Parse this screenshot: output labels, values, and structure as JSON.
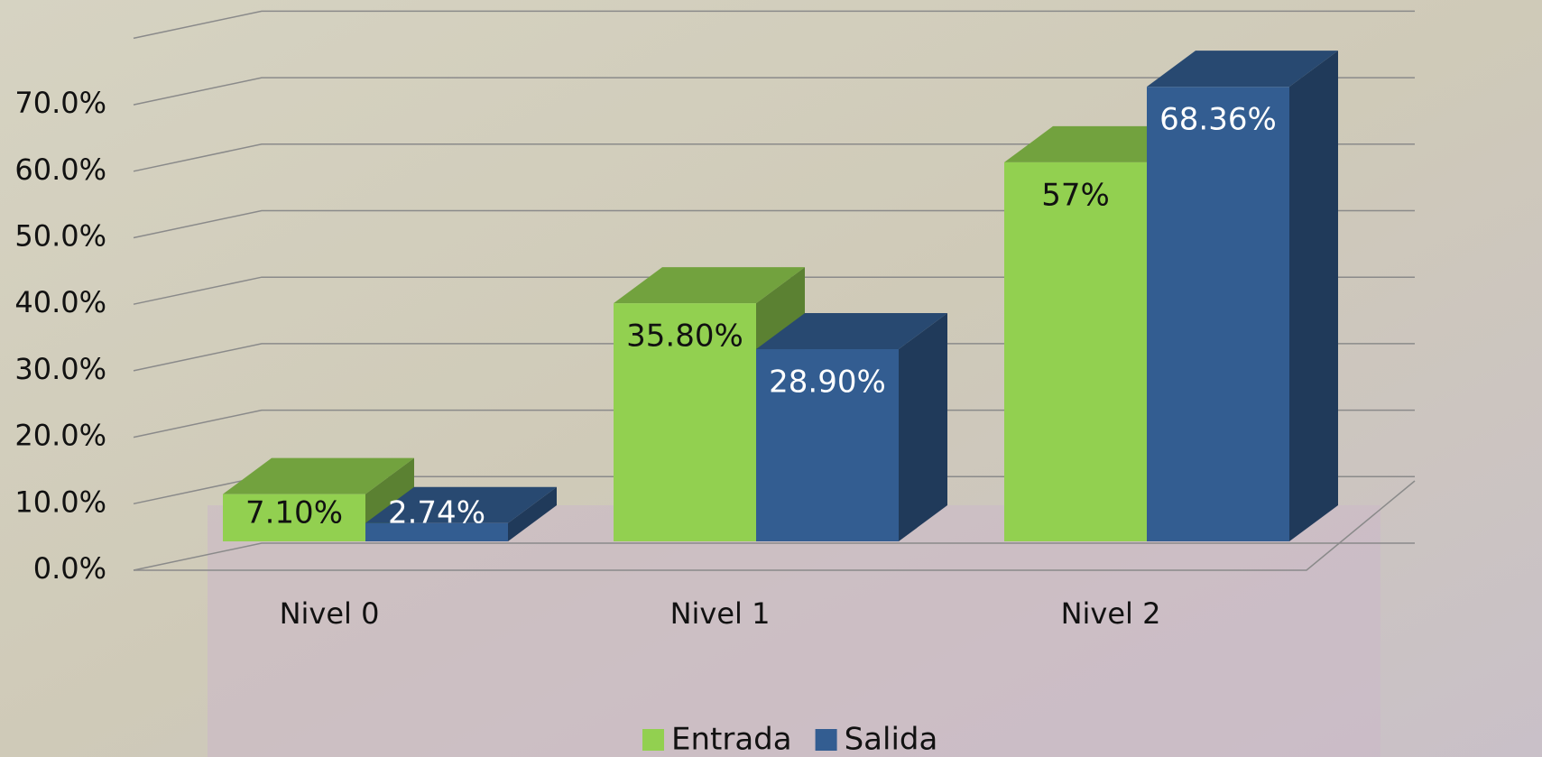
{
  "chart_data": {
    "type": "bar3d",
    "categories": [
      "Nivel 0",
      "Nivel 1",
      "Nivel 2"
    ],
    "series": [
      {
        "name": "Entrada",
        "color": "#92d050",
        "values": [
          7.1,
          35.8,
          57
        ],
        "value_labels": [
          "7.10%",
          "35.80%",
          "57%"
        ]
      },
      {
        "name": "Salida",
        "color": "#335d91",
        "values": [
          2.74,
          28.9,
          68.36
        ],
        "value_labels": [
          "2.74%",
          "28.90%",
          "68.36%"
        ]
      }
    ],
    "ylim": [
      0,
      80
    ],
    "yticks": [
      {
        "value": 0,
        "label": "0.0%"
      },
      {
        "value": 10,
        "label": "10.0%"
      },
      {
        "value": 20,
        "label": "20.0%"
      },
      {
        "value": 30,
        "label": "30.0%"
      },
      {
        "value": 40,
        "label": "40.0%"
      },
      {
        "value": 50,
        "label": "50.0%"
      },
      {
        "value": 60,
        "label": "60.0%"
      },
      {
        "value": 70,
        "label": "70.0%"
      }
    ],
    "grid": true,
    "legend": "bottom"
  }
}
